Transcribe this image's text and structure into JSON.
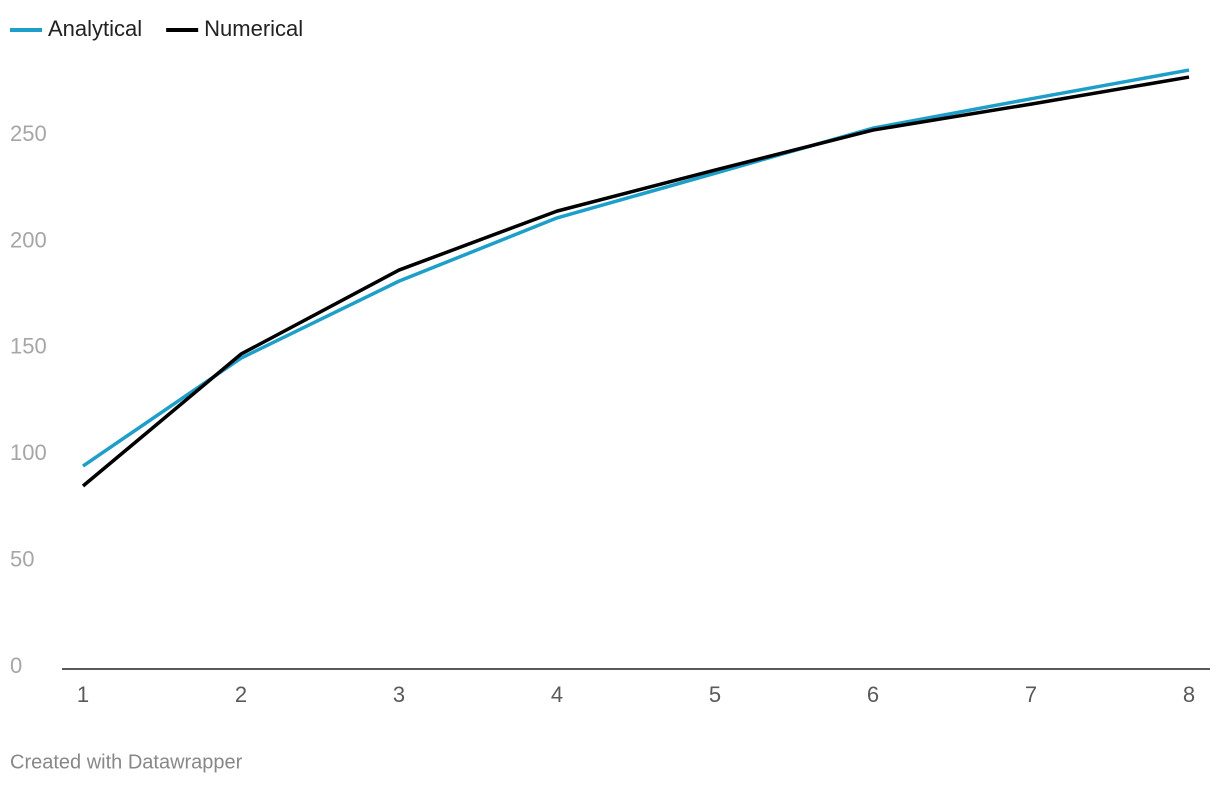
{
  "chart_data": {
    "type": "line",
    "x": [
      1,
      2,
      3,
      4,
      5,
      6,
      7,
      8
    ],
    "series": [
      {
        "name": "Analytical",
        "color": "#1d9fc9",
        "values": [
          95.4,
          146.1,
          182.3,
          212,
          233,
          254.2,
          268,
          281.5
        ]
      },
      {
        "name": "Numerical",
        "color": "#000000",
        "values": [
          86,
          148,
          187.5,
          215.2,
          234.5,
          253.3,
          265.5,
          278.2
        ]
      }
    ],
    "xlim": [
      1,
      8
    ],
    "xticks": [
      1,
      2,
      3,
      4,
      5,
      6,
      7,
      8
    ],
    "ylim": [
      0,
      282
    ],
    "yticks": [
      0,
      50,
      100,
      150,
      200,
      250
    ],
    "legend": "top-left",
    "footer": "Created with Datawrapper"
  }
}
